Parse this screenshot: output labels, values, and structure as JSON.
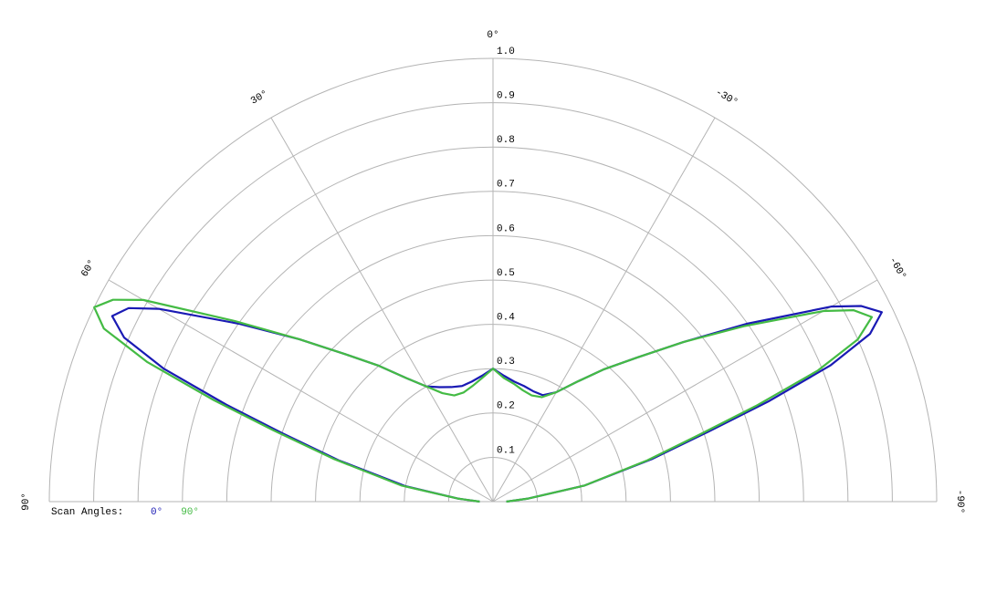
{
  "chart_data": {
    "type": "polar",
    "x": [
      90,
      85,
      80,
      75,
      72,
      70,
      68,
      66,
      64,
      62,
      60,
      55,
      50,
      45,
      40,
      35,
      30,
      25,
      20,
      15,
      10,
      5,
      0,
      -5,
      -10,
      -15,
      -20,
      -25,
      -30,
      -35,
      -40,
      -45,
      -50,
      -55,
      -60,
      -62,
      -64,
      -66,
      -68,
      -70,
      -72,
      -75,
      -80,
      -85,
      -90
    ],
    "series": [
      {
        "name": "0°",
        "color": "#1a1ab4",
        "values": [
          0.03,
          0.08,
          0.2,
          0.36,
          0.5,
          0.64,
          0.8,
          0.91,
          0.955,
          0.93,
          0.87,
          0.7,
          0.57,
          0.47,
          0.4,
          0.34,
          0.3,
          0.285,
          0.275,
          0.27,
          0.275,
          0.285,
          0.3,
          0.285,
          0.275,
          0.27,
          0.265,
          0.265,
          0.285,
          0.33,
          0.39,
          0.46,
          0.56,
          0.7,
          0.88,
          0.94,
          0.975,
          0.93,
          0.82,
          0.66,
          0.51,
          0.37,
          0.21,
          0.08,
          0.03
        ]
      },
      {
        "name": "90°",
        "color": "#44bb44",
        "values": [
          0.03,
          0.08,
          0.21,
          0.37,
          0.52,
          0.67,
          0.84,
          0.96,
          1.0,
          0.97,
          0.91,
          0.71,
          0.57,
          0.47,
          0.4,
          0.34,
          0.3,
          0.27,
          0.255,
          0.255,
          0.265,
          0.28,
          0.3,
          0.28,
          0.27,
          0.26,
          0.255,
          0.26,
          0.285,
          0.33,
          0.39,
          0.46,
          0.56,
          0.69,
          0.86,
          0.92,
          0.95,
          0.9,
          0.79,
          0.63,
          0.49,
          0.36,
          0.21,
          0.08,
          0.03
        ]
      }
    ],
    "xlim": [
      90,
      -90
    ],
    "xticks": [
      {
        "value": 90,
        "label": "90°"
      },
      {
        "value": 60,
        "label": "60°"
      },
      {
        "value": 30,
        "label": "30°"
      },
      {
        "value": 0,
        "label": "0°"
      },
      {
        "value": -30,
        "label": "-30°"
      },
      {
        "value": -60,
        "label": "-60°"
      },
      {
        "value": -90,
        "label": "-90°"
      }
    ],
    "ylim": [
      0,
      1
    ],
    "yticks": [
      0.1,
      0.2,
      0.3,
      0.4,
      0.5,
      0.6,
      0.7,
      0.8,
      0.9,
      {
        "value": 1,
        "label": "1.0"
      }
    ],
    "legend_title": "Scan Angles:",
    "grid": true
  }
}
